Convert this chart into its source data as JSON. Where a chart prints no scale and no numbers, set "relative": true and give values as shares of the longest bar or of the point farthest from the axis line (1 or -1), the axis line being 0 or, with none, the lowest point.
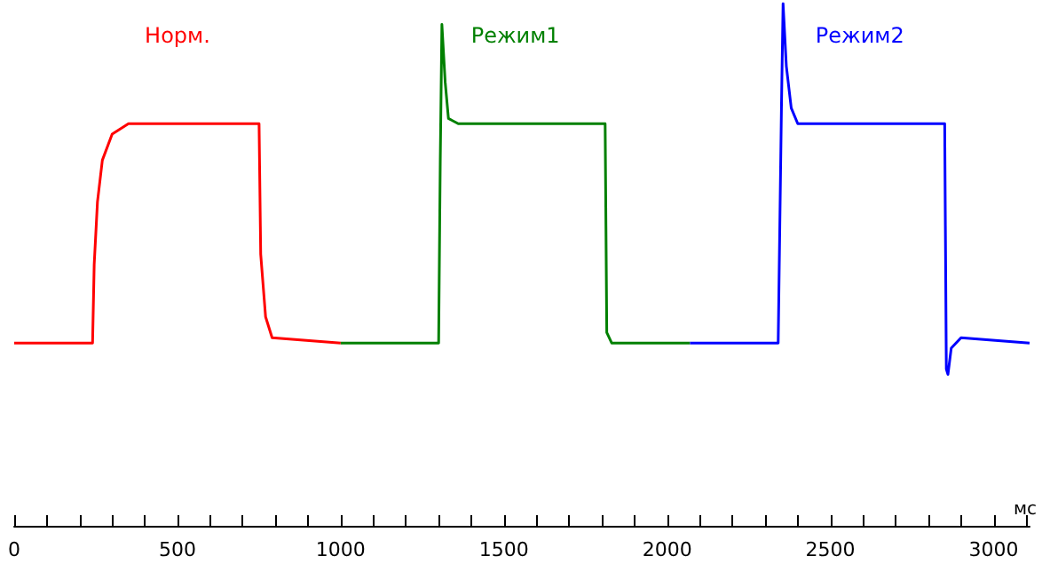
{
  "chart_data": {
    "type": "line",
    "relative": true,
    "xlabel": "мс",
    "xlim": [
      0,
      3110
    ],
    "xticks": [
      0,
      {
        "value": 100,
        "label": null
      },
      {
        "value": 200,
        "label": null
      },
      {
        "value": 300,
        "label": null
      },
      {
        "value": 400,
        "label": null
      },
      500,
      {
        "value": 600,
        "label": null
      },
      {
        "value": 700,
        "label": null
      },
      {
        "value": 800,
        "label": null
      },
      {
        "value": 900,
        "label": null
      },
      1000,
      {
        "value": 1100,
        "label": null
      },
      {
        "value": 1200,
        "label": null
      },
      {
        "value": 1300,
        "label": null
      },
      {
        "value": 1400,
        "label": null
      },
      1500,
      {
        "value": 1600,
        "label": null
      },
      {
        "value": 1700,
        "label": null
      },
      {
        "value": 1800,
        "label": null
      },
      {
        "value": 1900,
        "label": null
      },
      2000,
      {
        "value": 2100,
        "label": null
      },
      {
        "value": 2200,
        "label": null
      },
      {
        "value": 2300,
        "label": null
      },
      {
        "value": 2400,
        "label": null
      },
      2500,
      {
        "value": 2600,
        "label": null
      },
      {
        "value": 2700,
        "label": null
      },
      {
        "value": 2800,
        "label": null
      },
      {
        "value": 2900,
        "label": null
      },
      3000,
      {
        "value": 3100,
        "label": null
      }
    ],
    "grid": false,
    "legend": false,
    "marker": "none",
    "line_style": "solid",
    "series": [
      {
        "name": "Норм.",
        "color": "#ff0000",
        "x": [
          0,
          240,
          245,
          255,
          270,
          300,
          350,
          750,
          755,
          770,
          790,
          1000
        ],
        "values": [
          0.35,
          0.35,
          0.5,
          0.62,
          0.7,
          0.75,
          0.77,
          0.77,
          0.52,
          0.4,
          0.36,
          0.35
        ]
      },
      {
        "name": "Режим1",
        "color": "#008000",
        "x": [
          1000,
          1300,
          1305,
          1310,
          1320,
          1330,
          1360,
          1810,
          1815,
          1830,
          2070
        ],
        "values": [
          0.35,
          0.35,
          0.7,
          0.96,
          0.85,
          0.78,
          0.77,
          0.77,
          0.37,
          0.35,
          0.35
        ]
      },
      {
        "name": "Режим2",
        "color": "#0000ff",
        "x": [
          2070,
          2340,
          2350,
          2355,
          2365,
          2380,
          2400,
          2850,
          2855,
          2860,
          2870,
          2900,
          3110
        ],
        "values": [
          0.35,
          0.35,
          0.8,
          1.0,
          0.88,
          0.8,
          0.77,
          0.77,
          0.3,
          0.29,
          0.34,
          0.36,
          0.35
        ]
      }
    ]
  }
}
